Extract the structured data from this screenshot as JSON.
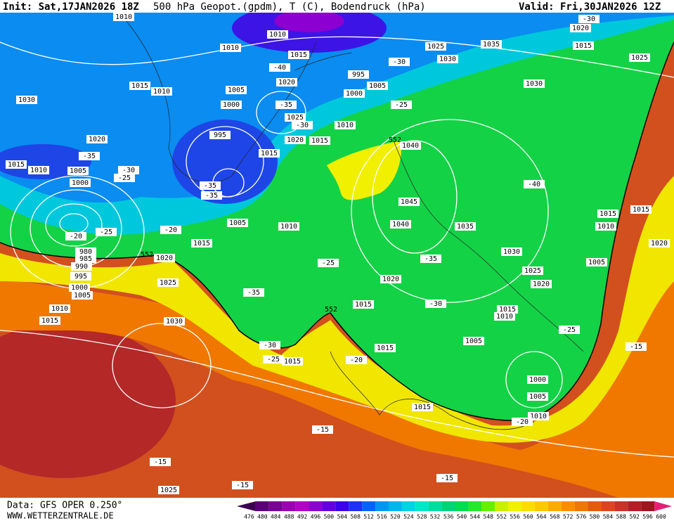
{
  "header": {
    "init": "Init: Sat,17JAN2026 18Z",
    "title": "500 hPa Geopot.(gpdm), T (C), Bodendruck (hPa)",
    "valid": "Valid: Fri,30JAN2026 12Z"
  },
  "footer": {
    "source": "Data: GFS OPER 0.250°",
    "website": "WWW.WETTERZENTRALE.DE"
  },
  "isobar_labels": [
    1010,
    1010,
    1010,
    1015,
    1020,
    1015,
    1010,
    1030,
    1005,
    1000,
    995,
    1025,
    1020,
    1015,
    1015,
    1010,
    1000,
    995,
    1005,
    1025,
    1030,
    1035,
    1020,
    1015,
    1025,
    1030,
    1020,
    1015,
    1010,
    1005,
    1000,
    1040,
    1045,
    1040,
    1035,
    1030,
    1025,
    1020,
    1005,
    1010,
    1015,
    1020,
    1025,
    1030,
    980,
    985,
    990,
    995,
    1000,
    1005,
    1010,
    1015,
    1020,
    1015,
    1015,
    1015,
    1005,
    1015,
    1010,
    1000,
    1005,
    1010,
    1015,
    1025,
    1015,
    1015,
    1010,
    1020,
    1005
  ],
  "temperature_labels": [
    -30,
    -30,
    -25,
    -40,
    -35,
    -30,
    -35,
    -30,
    -25,
    -35,
    -35,
    -20,
    -25,
    -20,
    -40,
    -25,
    -35,
    -30,
    -35,
    -30,
    -25,
    -20,
    -25,
    -15,
    -20,
    -15,
    -15,
    -15,
    -15
  ],
  "geopotential_labels": [
    552,
    552,
    552
  ],
  "colorbar": {
    "values": [
      476,
      480,
      484,
      488,
      492,
      496,
      500,
      504,
      508,
      512,
      516,
      520,
      524,
      528,
      532,
      536,
      540,
      544,
      548,
      552,
      556,
      560,
      564,
      568,
      572,
      576,
      580,
      584,
      588,
      592,
      596,
      600
    ],
    "colors": [
      "#3c0050",
      "#5a0078",
      "#7a0096",
      "#9b00b4",
      "#b400c8",
      "#8c00d2",
      "#6400dc",
      "#3c00e6",
      "#1e32f0",
      "#0064f5",
      "#0096f5",
      "#00b4f0",
      "#00d2e6",
      "#00e6c8",
      "#00dca0",
      "#00d278",
      "#00dc50",
      "#28e628",
      "#64f000",
      "#c8f000",
      "#f0f000",
      "#ffdc00",
      "#ffc800",
      "#ffaa00",
      "#ff8c00",
      "#f07800",
      "#e65a0a",
      "#dc461e",
      "#c83228",
      "#b41e28",
      "#a0141e",
      "#e61e78"
    ]
  }
}
